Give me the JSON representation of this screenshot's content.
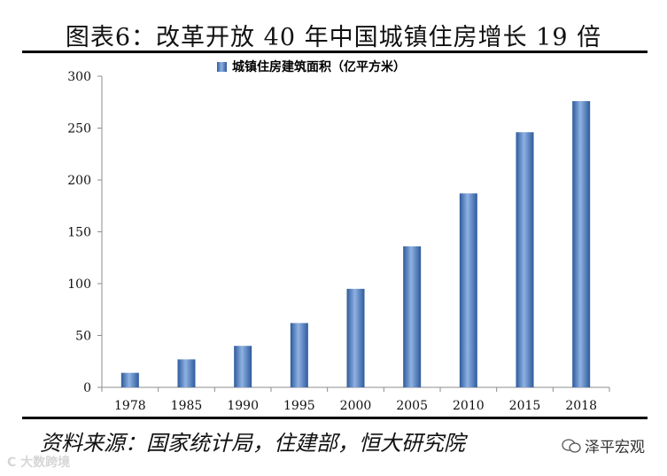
{
  "title": "图表6：改革开放 40 年中国城镇住房增长 19 倍",
  "source": "资料来源：国家统计局，住建部，恒大研究院",
  "watermarks": {
    "left": "C 大数跨境",
    "wechat": "泽平宏观"
  },
  "colors": {
    "bar_dark": "#2e5a9c",
    "bar_light": "#8fb2e3",
    "axis": "#8c8c8c"
  },
  "chart_data": {
    "type": "bar",
    "categories": [
      "1978",
      "1985",
      "1990",
      "1995",
      "2000",
      "2005",
      "2010",
      "2015",
      "2018"
    ],
    "series": [
      {
        "name": "城镇住房建筑面积（亿平方米）",
        "values": [
          14,
          27,
          40,
          62,
          95,
          136,
          187,
          246,
          276
        ]
      }
    ],
    "ylim": [
      0,
      300
    ],
    "yticks": [
      "0",
      "50",
      "100",
      "150",
      "200",
      "250",
      "300"
    ],
    "legend": "top-center",
    "grid": false
  }
}
